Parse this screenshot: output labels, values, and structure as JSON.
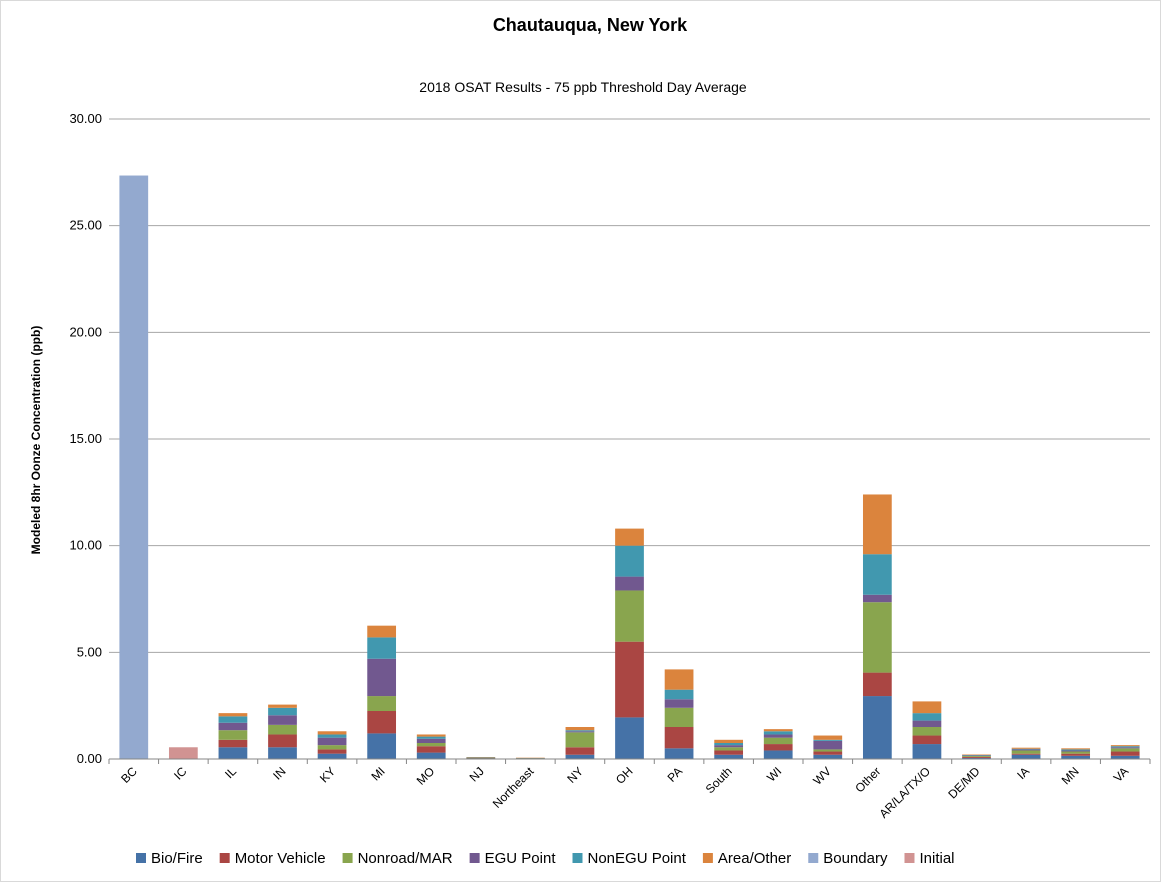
{
  "chart_data": {
    "type": "bar",
    "stacked": true,
    "title": "Chautauqua, New York",
    "subtitle": "2018 OSAT Results - 75 ppb Threshold Day Average",
    "xlabel": "",
    "ylabel": "Modeled 8hr Oonze Concentration (ppb)",
    "ylim": [
      0,
      30
    ],
    "yticks": [
      "0.00",
      "5.00",
      "10.00",
      "15.00",
      "20.00",
      "25.00",
      "30.00"
    ],
    "grid": true,
    "legend_position": "bottom",
    "categories": [
      "BC",
      "IC",
      "IL",
      "IN",
      "KY",
      "MI",
      "MO",
      "NJ",
      "Northeast",
      "NY",
      "OH",
      "PA",
      "South",
      "WI",
      "WV",
      "Other",
      "AR/LA/TX/O",
      "DE/MD",
      "IA",
      "MN",
      "VA"
    ],
    "series": [
      {
        "name": "Bio/Fire",
        "color": "#4572a7",
        "values": [
          0,
          0,
          0.55,
          0.55,
          0.25,
          1.2,
          0.3,
          0.02,
          0.01,
          0.2,
          1.95,
          0.5,
          0.2,
          0.4,
          0.2,
          2.95,
          0.7,
          0.05,
          0.2,
          0.15,
          0.15
        ]
      },
      {
        "name": "Motor Vehicle",
        "color": "#aa4643",
        "values": [
          0,
          0,
          0.35,
          0.6,
          0.2,
          1.05,
          0.3,
          0.02,
          0.01,
          0.35,
          3.55,
          1.0,
          0.2,
          0.3,
          0.15,
          1.1,
          0.4,
          0.05,
          0.05,
          0.1,
          0.2
        ]
      },
      {
        "name": "Nonroad/MAR",
        "color": "#89a54e",
        "values": [
          0,
          0,
          0.45,
          0.45,
          0.2,
          0.7,
          0.15,
          0.01,
          0.01,
          0.7,
          2.4,
          0.9,
          0.15,
          0.3,
          0.1,
          3.3,
          0.4,
          0.05,
          0.15,
          0.1,
          0.15
        ]
      },
      {
        "name": "EGU Point",
        "color": "#71588f",
        "values": [
          0,
          0,
          0.35,
          0.45,
          0.35,
          1.75,
          0.2,
          0.01,
          0.01,
          0.05,
          0.65,
          0.4,
          0.1,
          0.15,
          0.4,
          0.35,
          0.3,
          0.02,
          0.05,
          0.05,
          0.05
        ]
      },
      {
        "name": "NonEGU Point",
        "color": "#4198af",
        "values": [
          0,
          0,
          0.3,
          0.35,
          0.15,
          1.0,
          0.1,
          0.01,
          0.01,
          0.05,
          1.45,
          0.45,
          0.1,
          0.15,
          0.05,
          1.9,
          0.35,
          0.02,
          0.03,
          0.05,
          0.05
        ]
      },
      {
        "name": "Area/Other",
        "color": "#db843d",
        "values": [
          0,
          0,
          0.15,
          0.15,
          0.15,
          0.55,
          0.1,
          0.02,
          0.01,
          0.15,
          0.8,
          0.95,
          0.15,
          0.1,
          0.2,
          2.8,
          0.55,
          0.02,
          0.05,
          0.05,
          0.05
        ]
      },
      {
        "name": "Boundary",
        "color": "#93a9cf",
        "values": [
          27.35,
          0,
          0,
          0,
          0,
          0,
          0,
          0,
          0,
          0,
          0,
          0,
          0,
          0,
          0,
          0,
          0,
          0,
          0,
          0,
          0
        ]
      },
      {
        "name": "Initial",
        "color": "#d19392",
        "values": [
          0,
          0.55,
          0,
          0,
          0,
          0,
          0,
          0,
          0,
          0,
          0,
          0,
          0,
          0,
          0,
          0,
          0,
          0,
          0,
          0,
          0
        ]
      }
    ]
  }
}
